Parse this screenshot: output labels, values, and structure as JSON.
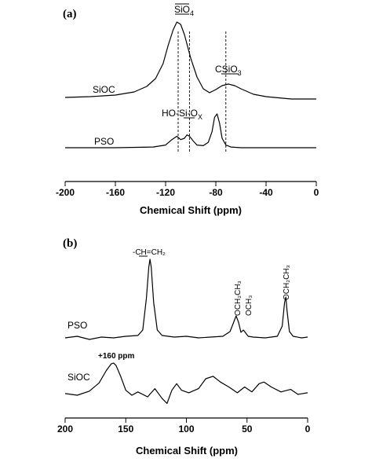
{
  "chart_data": [
    {
      "type": "line",
      "panel_label": "(a)",
      "xlabel": "Chemical Shift (ppm)",
      "xlim": [
        -200,
        0
      ],
      "xticks": [
        -200,
        -160,
        -120,
        -80,
        -40,
        0
      ],
      "grid": false,
      "series": [
        {
          "name": "SiOC",
          "x": [
            -200,
            -180,
            -160,
            -145,
            -135,
            -128,
            -122,
            -118,
            -114,
            -111,
            -108,
            -105,
            -100,
            -95,
            -90,
            -85,
            -80,
            -75,
            -70,
            -65,
            -60,
            -50,
            -40,
            -20,
            0
          ],
          "y": [
            0.02,
            0.03,
            0.05,
            0.09,
            0.16,
            0.26,
            0.45,
            0.68,
            0.88,
            0.98,
            0.95,
            0.82,
            0.52,
            0.28,
            0.13,
            0.08,
            0.12,
            0.17,
            0.19,
            0.17,
            0.13,
            0.06,
            0.03,
            0.0,
            0.0
          ]
        },
        {
          "name": "PSO",
          "x": [
            -200,
            -160,
            -130,
            -120,
            -115,
            -111,
            -108,
            -105,
            -103,
            -101,
            -98,
            -95,
            -90,
            -86,
            -83,
            -81,
            -79,
            -77,
            -75,
            -72,
            -68,
            -60,
            -40,
            0
          ],
          "y": [
            0.0,
            0.0,
            0.01,
            0.04,
            0.12,
            0.17,
            0.12,
            0.14,
            0.19,
            0.17,
            0.1,
            0.04,
            0.03,
            0.08,
            0.24,
            0.45,
            0.5,
            0.36,
            0.14,
            0.04,
            0.01,
            0.0,
            0.0,
            0.0
          ]
        }
      ],
      "reference_lines": [
        -110,
        -101,
        -72
      ],
      "annotations": [
        {
          "text": "SiO",
          "subscript": "4",
          "x": -108
        },
        {
          "text": "CSiO",
          "subscript": "3",
          "x": -72
        },
        {
          "text": "HO-Si-O",
          "subscript": "X",
          "x": -97
        }
      ]
    },
    {
      "type": "line",
      "panel_label": "(b)",
      "xlabel": "Chemical Shift (ppm)",
      "xlim": [
        200,
        0
      ],
      "xticks": [
        200,
        150,
        100,
        50,
        0
      ],
      "grid": false,
      "series": [
        {
          "name": "PSO",
          "x": [
            200,
            190,
            180,
            170,
            160,
            150,
            140,
            136,
            133,
            131,
            130,
            129,
            127,
            124,
            120,
            110,
            100,
            90,
            80,
            70,
            64,
            61,
            59,
            57,
            55,
            53,
            51,
            49,
            45,
            35,
            25,
            21,
            19,
            18,
            17,
            15,
            12,
            5,
            0
          ],
          "y": [
            0.0,
            0.02,
            -0.02,
            0.01,
            0.0,
            0.02,
            0.03,
            0.1,
            0.5,
            0.9,
            1.0,
            0.9,
            0.45,
            0.1,
            0.03,
            0.01,
            0.02,
            0.0,
            0.01,
            0.02,
            0.08,
            0.2,
            0.28,
            0.2,
            0.07,
            0.1,
            0.06,
            0.02,
            0.01,
            0.0,
            0.02,
            0.15,
            0.45,
            0.52,
            0.35,
            0.08,
            0.02,
            0.0,
            0.01
          ]
        },
        {
          "name": "SiOC",
          "x": [
            200,
            190,
            180,
            172,
            166,
            162,
            160,
            158,
            154,
            150,
            145,
            140,
            132,
            126,
            120,
            116,
            112,
            108,
            104,
            98,
            90,
            84,
            78,
            72,
            65,
            58,
            52,
            46,
            40,
            36,
            30,
            22,
            14,
            8,
            0
          ],
          "y": [
            0.02,
            0.0,
            0.05,
            0.15,
            0.3,
            0.38,
            0.39,
            0.36,
            0.22,
            0.06,
            0.0,
            0.04,
            -0.02,
            0.08,
            -0.04,
            -0.1,
            0.06,
            0.14,
            0.06,
            0.03,
            0.08,
            0.2,
            0.23,
            0.16,
            0.1,
            0.03,
            0.1,
            0.04,
            0.14,
            0.16,
            0.1,
            0.04,
            0.07,
            0.01,
            0.03
          ]
        }
      ],
      "annotations": [
        {
          "text": "-CH=CH₂",
          "x": 130
        },
        {
          "text": "+160 ppm",
          "x": 160
        },
        {
          "text": "OCH₂CH₃",
          "x": 60
        },
        {
          "text": "OCH₃",
          "x": 51
        },
        {
          "text": "OCH₂CH₃",
          "x": 18
        }
      ]
    }
  ]
}
